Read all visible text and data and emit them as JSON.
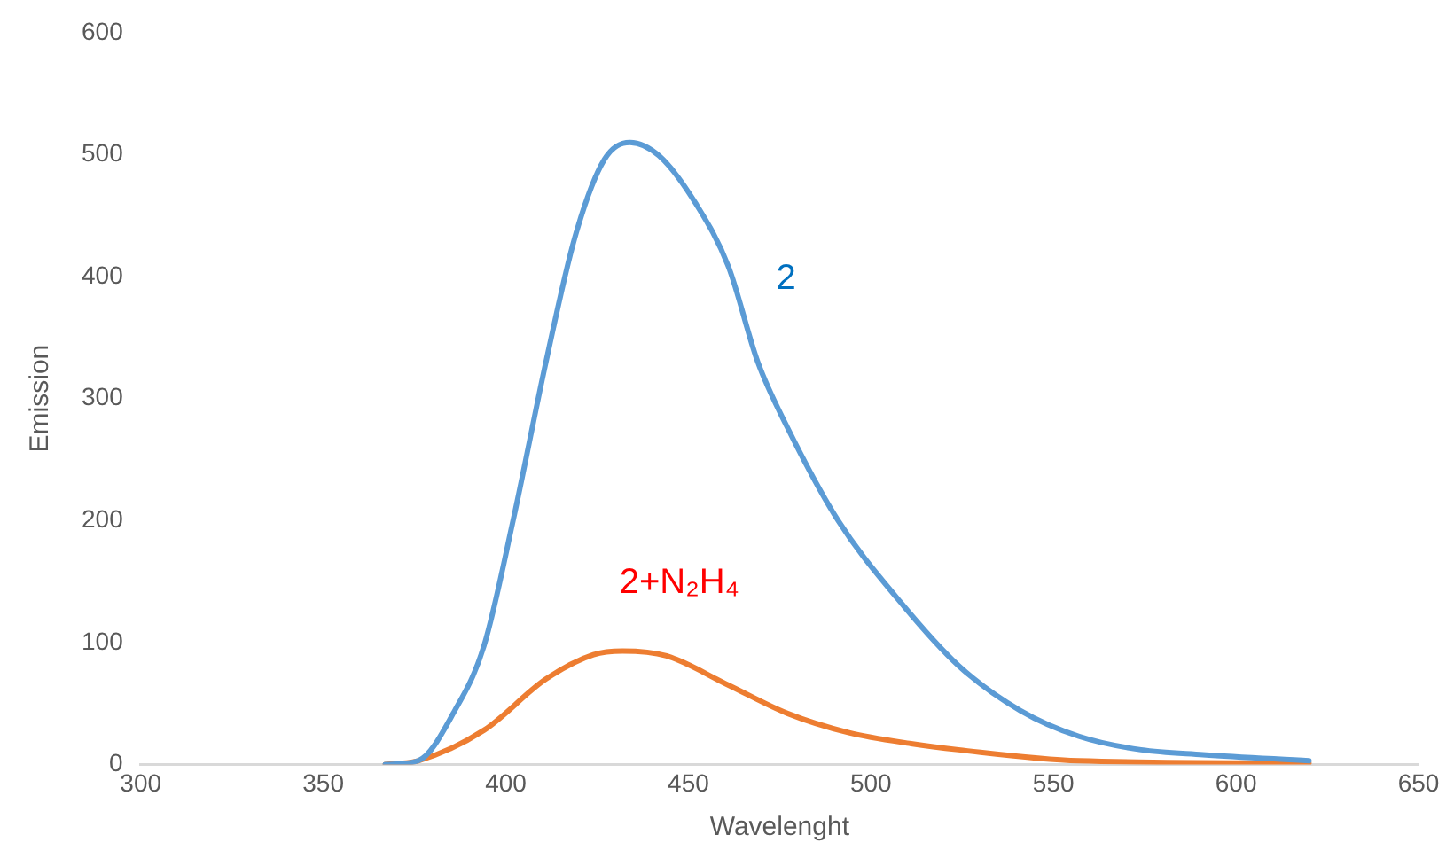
{
  "chart_data": {
    "type": "line",
    "xlabel": "Wavelenght",
    "ylabel": "Emission",
    "xlim": [
      300,
      650
    ],
    "xticks": [
      300,
      350,
      400,
      450,
      500,
      550,
      600,
      650
    ],
    "ylim": [
      0,
      600
    ],
    "yticks": [
      0,
      100,
      200,
      300,
      400,
      500,
      600
    ],
    "grid": false,
    "legend": false,
    "marker": "none",
    "line_style": "solid",
    "series": [
      {
        "name": "2",
        "color": "#5b9bd5",
        "x": [
          367,
          376,
          386,
          394,
          402,
          411,
          419,
          427,
          434,
          442,
          452,
          461,
          469,
          477,
          491,
          507,
          524,
          541,
          557,
          574,
          591,
          620
        ],
        "values": [
          0,
          3,
          44,
          97,
          200,
          330,
          433,
          496,
          510,
          499,
          460,
          408,
          330,
          277,
          200,
          137,
          81,
          44,
          23,
          12,
          8,
          3
        ]
      },
      {
        "name": "2+N₂H₄",
        "color": "#ed7d31",
        "x": [
          367,
          376,
          394,
          411,
          424,
          432,
          444,
          461,
          477,
          494,
          511,
          524,
          557,
          620
        ],
        "values": [
          0,
          3,
          28,
          70,
          90,
          93,
          89,
          65,
          42,
          26,
          17,
          12,
          3,
          1
        ]
      }
    ]
  }
}
